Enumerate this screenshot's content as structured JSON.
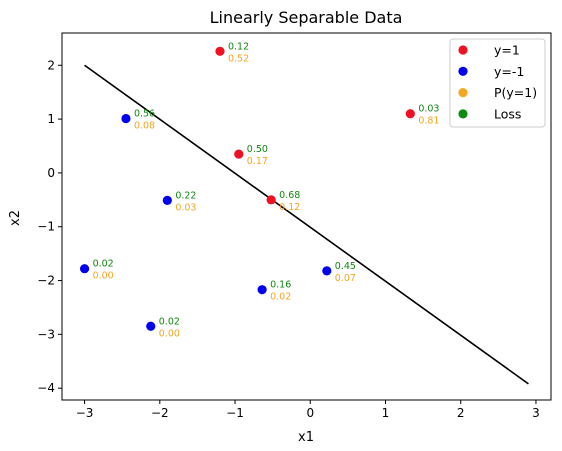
{
  "chart_data": {
    "type": "scatter",
    "title": "Linearly Separable Data",
    "xlabel": "x1",
    "ylabel": "x2",
    "xlim": [
      -3.3,
      3.2
    ],
    "ylim": [
      -4.22,
      2.6
    ],
    "xticks": [
      -3,
      -2,
      -1,
      0,
      1,
      2,
      3
    ],
    "yticks": [
      -4,
      -3,
      -2,
      -1,
      0,
      1,
      2
    ],
    "grid": false,
    "legend_position": "top-right",
    "legend": [
      {
        "label": "y=1",
        "color": "#ee1122"
      },
      {
        "label": "y=-1",
        "color": "#0000ee"
      },
      {
        "label": "P(y=1)",
        "color": "#f5a623"
      },
      {
        "label": "Loss",
        "color": "#118811"
      }
    ],
    "series": [
      {
        "name": "y=1",
        "color": "#ee1122",
        "points": [
          {
            "x": -1.2,
            "y": 2.26,
            "loss": "0.12",
            "prob": "0.52"
          },
          {
            "x": 1.33,
            "y": 1.1,
            "loss": "0.03",
            "prob": "0.81"
          },
          {
            "x": -0.95,
            "y": 0.35,
            "loss": "0.50",
            "prob": "0.17"
          },
          {
            "x": -0.52,
            "y": -0.5,
            "loss": "0.68",
            "prob": "0.12"
          }
        ]
      },
      {
        "name": "y=-1",
        "color": "#0000ee",
        "points": [
          {
            "x": -2.45,
            "y": 1.01,
            "loss": "0.56",
            "prob": "0.08"
          },
          {
            "x": -1.9,
            "y": -0.51,
            "loss": "0.22",
            "prob": "0.03"
          },
          {
            "x": -3.0,
            "y": -1.78,
            "loss": "0.02",
            "prob": "0.00"
          },
          {
            "x": 0.22,
            "y": -1.82,
            "loss": "0.45",
            "prob": "0.07"
          },
          {
            "x": -0.64,
            "y": -2.17,
            "loss": "0.16",
            "prob": "0.02"
          },
          {
            "x": -2.12,
            "y": -2.85,
            "loss": "0.02",
            "prob": "0.00"
          }
        ]
      }
    ],
    "decision_line": {
      "x": [
        -3.0,
        2.9
      ],
      "y": [
        2.0,
        -3.92
      ],
      "color": "#000000"
    },
    "prob_label_color": "#f5a623",
    "loss_label_color": "#118811"
  }
}
